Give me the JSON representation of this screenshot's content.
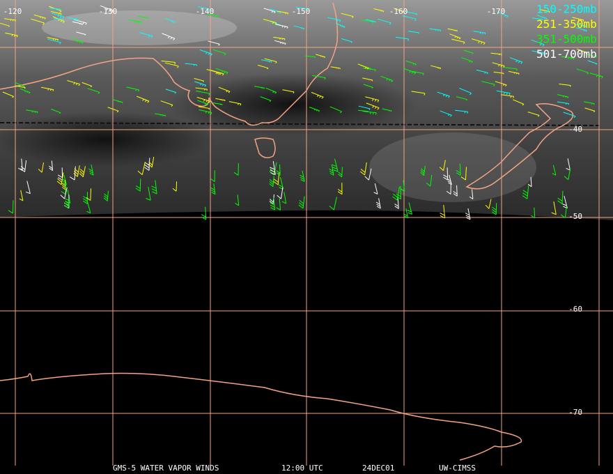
{
  "map": {
    "longitude_labels": [
      "-120",
      "-130",
      "-140",
      "-150",
      "-160",
      "-170"
    ],
    "latitude_labels": [
      "-40",
      "-50",
      "-60",
      "-70"
    ],
    "legend": [
      {
        "label": "150-250mb",
        "color": "#00ffff"
      },
      {
        "label": "251-350mb",
        "color": "#ffff00"
      },
      {
        "label": "351-500mb",
        "color": "#00ff00"
      },
      {
        "label": "501-700mb",
        "color": "#ffffff"
      }
    ],
    "footer": [
      "GMS-5 WATER VAPOR WINDS",
      "12:00 UTC",
      "24DEC01",
      "UW-CIMSS"
    ]
  }
}
